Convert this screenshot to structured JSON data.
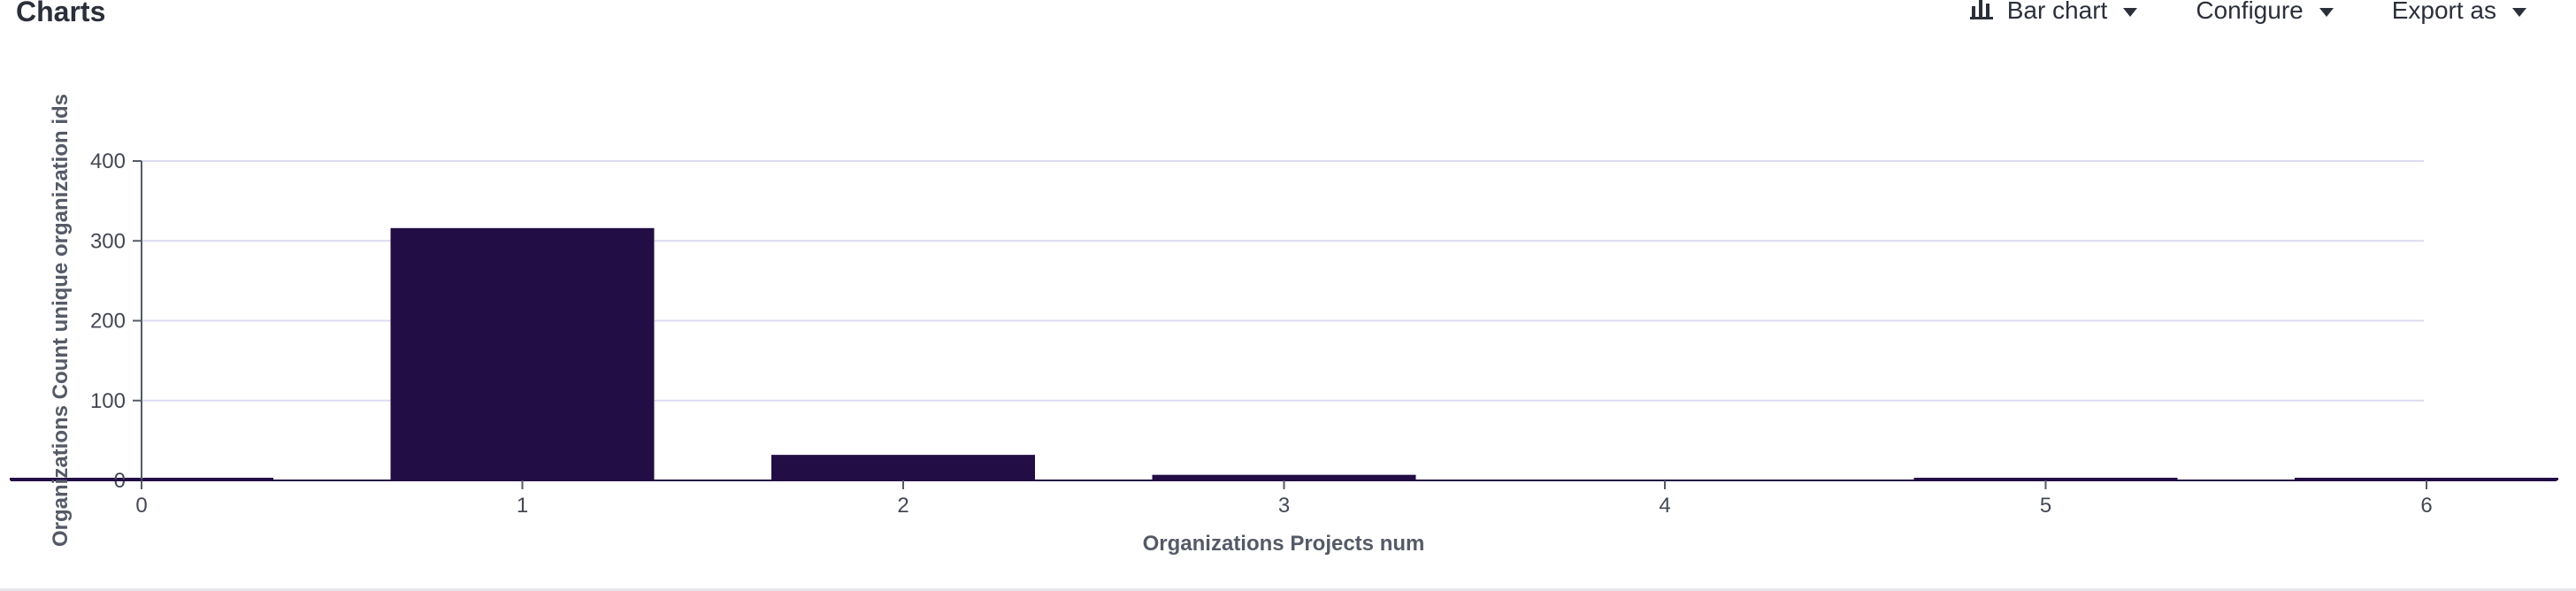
{
  "header": {
    "title": "Charts"
  },
  "toolbar": {
    "chart_type_label": "Bar chart",
    "configure_label": "Configure",
    "export_label": "Export as"
  },
  "icons": {
    "chart_type": "bar-chart-icon",
    "caret": "caret-down-icon"
  },
  "colors": {
    "bar": "#220d45",
    "grid": "#dcdcf0",
    "axis": "#2b2f3a"
  },
  "chart_data": {
    "type": "bar",
    "categories": [
      "0",
      "1",
      "2",
      "3",
      "4",
      "5",
      "6"
    ],
    "values": [
      3,
      316,
      32,
      7,
      0,
      2,
      2
    ],
    "title": "",
    "xlabel": "Organizations Projects num",
    "ylabel": "Organizations Count unique organization ids",
    "ylim": [
      0,
      400
    ],
    "yticks": [
      "0",
      "100",
      "200",
      "300",
      "400"
    ],
    "grid": true,
    "legend": "none"
  }
}
